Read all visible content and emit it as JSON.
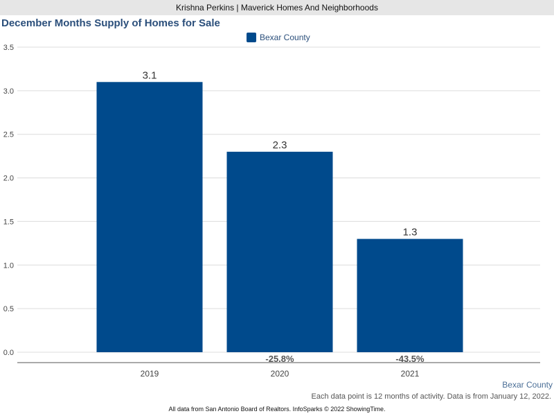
{
  "header": {
    "agent_line": "Krishna Perkins | Maverick Homes And Neighborhoods"
  },
  "chart_data": {
    "type": "bar",
    "title": "December Months Supply of Homes for Sale",
    "categories": [
      "2019",
      "2020",
      "2021"
    ],
    "series": [
      {
        "name": "Bexar County",
        "color": "#004a8c",
        "values": [
          3.1,
          2.3,
          1.3
        ],
        "value_labels": [
          "3.1",
          "2.3",
          "1.3"
        ],
        "change_labels": [
          "",
          "-25.8%",
          "-43.5%"
        ]
      }
    ],
    "ylim": [
      0,
      3.5
    ],
    "yticks": [
      "0.0",
      "0.5",
      "1.0",
      "1.5",
      "2.0",
      "2.5",
      "3.0",
      "3.5"
    ],
    "xlabel": "",
    "ylabel": "",
    "grid": true,
    "legend_position": "top-center"
  },
  "footer": {
    "series_label": "Bexar County",
    "note": "Each data point is 12 months of activity. Data is from January 12, 2022.",
    "source": "All data from San Antonio Board of Realtors. InfoSparks © 2022 ShowingTime."
  }
}
